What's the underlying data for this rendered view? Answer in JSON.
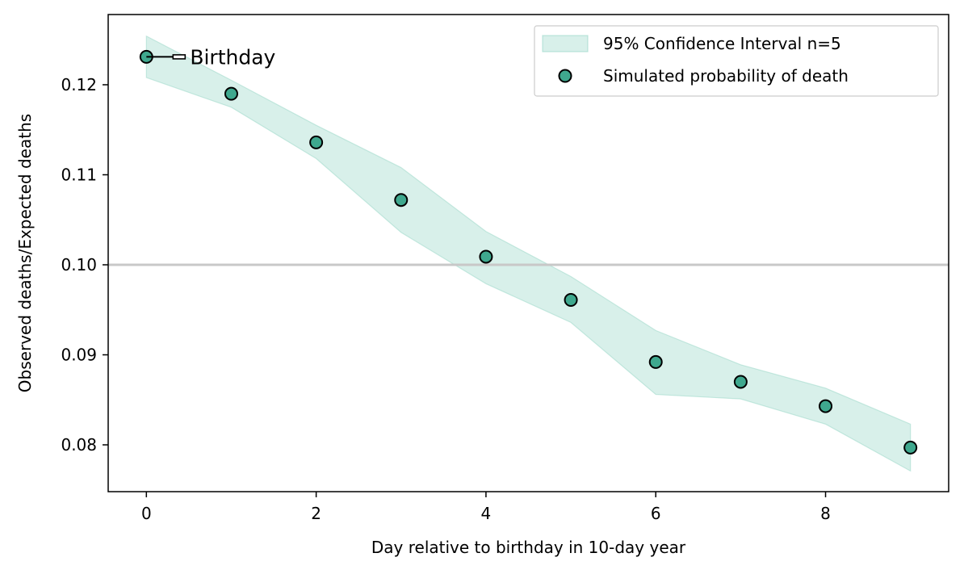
{
  "chart_data": {
    "type": "scatter",
    "xlabel": "Day relative to birthday in 10-day year",
    "ylabel": "Observed deaths/Expected deaths",
    "xlim": [
      -0.45,
      9.45
    ],
    "ylim": [
      0.0748,
      0.1278
    ],
    "xticks": [
      0,
      2,
      4,
      6,
      8
    ],
    "yticks": [
      0.08,
      0.09,
      0.1,
      0.11,
      0.12
    ],
    "xtick_labels": [
      "0",
      "2",
      "4",
      "6",
      "8"
    ],
    "ytick_labels": [
      "0.08",
      "0.09",
      "0.10",
      "0.11",
      "0.12"
    ],
    "reference_line_y": 0.1,
    "legend_position": "top-right",
    "grid": false,
    "series": [
      {
        "name": "Simulated probability of death",
        "kind": "points",
        "color": "#3fa88e",
        "x": [
          0,
          1,
          2,
          3,
          4,
          5,
          6,
          7,
          8,
          9
        ],
        "y": [
          0.1231,
          0.119,
          0.1136,
          0.1072,
          0.1009,
          0.0961,
          0.0892,
          0.087,
          0.0843,
          0.0797
        ]
      },
      {
        "name": "95% Confidence Interval n=5",
        "kind": "band",
        "color": "#8fd3c2",
        "x": [
          0,
          1,
          2,
          3,
          4,
          5,
          6,
          7,
          8,
          9
        ],
        "lower": [
          0.1208,
          0.1175,
          0.1118,
          0.1036,
          0.0979,
          0.0936,
          0.0856,
          0.0851,
          0.0823,
          0.0771
        ],
        "upper": [
          0.1254,
          0.1205,
          0.1155,
          0.1108,
          0.1037,
          0.0987,
          0.0927,
          0.0889,
          0.0863,
          0.0823
        ]
      }
    ],
    "annotations": [
      {
        "text": "Birthday",
        "x": 0,
        "y": 0.1231
      }
    ]
  }
}
